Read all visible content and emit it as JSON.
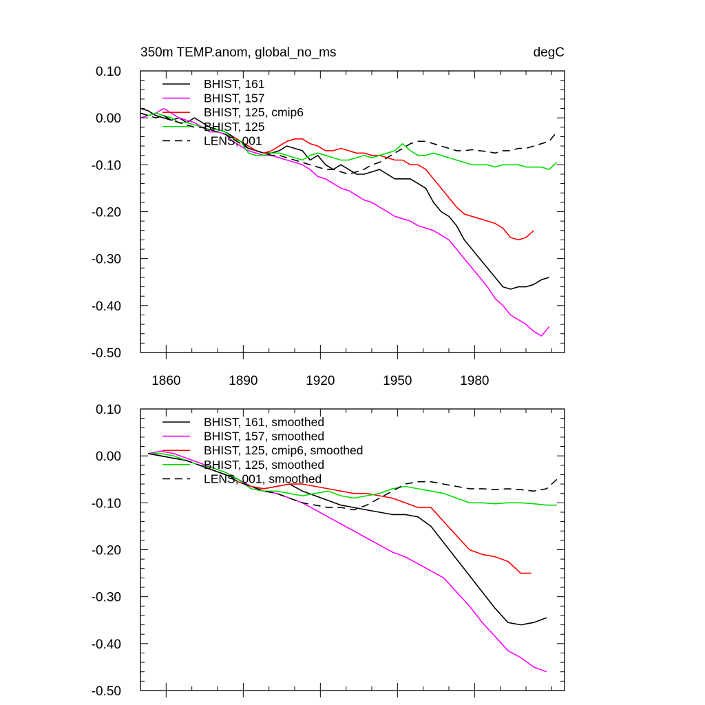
{
  "chart_data": [
    {
      "type": "line",
      "title": "350m TEMP.anom, global_no_ms",
      "units": "degC",
      "xlabel": "",
      "ylabel": "",
      "xlim": [
        1850,
        2015
      ],
      "ylim": [
        -0.5,
        0.1
      ],
      "x_ticks": [
        1860,
        1890,
        1920,
        1950,
        1980
      ],
      "x_tick_labels": [
        "1860",
        "1890",
        "1920",
        "1950",
        "1980"
      ],
      "y_ticks": [
        0.1,
        0.0,
        -0.1,
        -0.2,
        -0.3,
        -0.4,
        -0.5
      ],
      "y_tick_labels": [
        "0.10",
        "0.00",
        "-0.10",
        "-0.20",
        "-0.30",
        "-0.40",
        "-0.50"
      ],
      "legend_position": "top-left",
      "grid": false,
      "series": [
        {
          "name": "BHIST, 161",
          "color": "#000000",
          "dash": "solid",
          "x": [
            1850,
            1853,
            1856,
            1859,
            1862,
            1865,
            1868,
            1871,
            1874,
            1877,
            1880,
            1883,
            1886,
            1889,
            1892,
            1895,
            1898,
            1901,
            1904,
            1907,
            1910,
            1913,
            1916,
            1919,
            1922,
            1925,
            1928,
            1931,
            1934,
            1937,
            1940,
            1943,
            1946,
            1949,
            1952,
            1955,
            1958,
            1961,
            1964,
            1967,
            1970,
            1973,
            1976,
            1979,
            1982,
            1985,
            1988,
            1991,
            1994,
            1997,
            2000,
            2003,
            2006,
            2009
          ],
          "y": [
            0.02,
            0.015,
            0.005,
            0.0,
            -0.005,
            0.0,
            -0.01,
            0.0,
            -0.01,
            -0.02,
            -0.025,
            -0.03,
            -0.04,
            -0.05,
            -0.065,
            -0.07,
            -0.075,
            -0.075,
            -0.07,
            -0.06,
            -0.065,
            -0.07,
            -0.09,
            -0.08,
            -0.1,
            -0.11,
            -0.1,
            -0.11,
            -0.12,
            -0.12,
            -0.115,
            -0.11,
            -0.12,
            -0.13,
            -0.13,
            -0.13,
            -0.14,
            -0.15,
            -0.18,
            -0.2,
            -0.21,
            -0.23,
            -0.26,
            -0.28,
            -0.3,
            -0.32,
            -0.34,
            -0.36,
            -0.365,
            -0.36,
            -0.36,
            -0.355,
            -0.345,
            -0.34
          ]
        },
        {
          "name": "BHIST, 157",
          "color": "#ff00ff",
          "dash": "solid",
          "x": [
            1850,
            1853,
            1856,
            1859,
            1862,
            1865,
            1868,
            1871,
            1874,
            1877,
            1880,
            1883,
            1886,
            1889,
            1892,
            1895,
            1898,
            1901,
            1904,
            1907,
            1910,
            1913,
            1916,
            1919,
            1922,
            1925,
            1928,
            1931,
            1934,
            1937,
            1940,
            1943,
            1946,
            1949,
            1952,
            1955,
            1958,
            1961,
            1964,
            1967,
            1970,
            1973,
            1976,
            1979,
            1982,
            1985,
            1988,
            1991,
            1994,
            1997,
            2000,
            2003,
            2006,
            2009
          ],
          "y": [
            0.0,
            0.005,
            0.01,
            0.02,
            0.01,
            0.0,
            -0.005,
            -0.01,
            -0.02,
            -0.03,
            -0.03,
            -0.035,
            -0.05,
            -0.06,
            -0.07,
            -0.075,
            -0.08,
            -0.08,
            -0.085,
            -0.09,
            -0.095,
            -0.1,
            -0.11,
            -0.125,
            -0.13,
            -0.14,
            -0.15,
            -0.155,
            -0.165,
            -0.175,
            -0.18,
            -0.19,
            -0.2,
            -0.21,
            -0.215,
            -0.22,
            -0.23,
            -0.235,
            -0.24,
            -0.25,
            -0.26,
            -0.28,
            -0.3,
            -0.32,
            -0.34,
            -0.36,
            -0.385,
            -0.4,
            -0.42,
            -0.43,
            -0.44,
            -0.455,
            -0.465,
            -0.445
          ]
        },
        {
          "name": "BHIST, 125, cmip6",
          "color": "#ff0000",
          "dash": "solid",
          "x": [
            1886,
            1889,
            1892,
            1895,
            1898,
            1901,
            1904,
            1907,
            1910,
            1913,
            1916,
            1919,
            1922,
            1925,
            1928,
            1931,
            1934,
            1937,
            1940,
            1943,
            1946,
            1949,
            1952,
            1955,
            1958,
            1961,
            1964,
            1967,
            1970,
            1973,
            1976,
            1979,
            1982,
            1985,
            1988,
            1991,
            1994,
            1997,
            2000,
            2003
          ],
          "y": [
            -0.04,
            -0.05,
            -0.06,
            -0.07,
            -0.075,
            -0.07,
            -0.06,
            -0.05,
            -0.045,
            -0.045,
            -0.055,
            -0.06,
            -0.07,
            -0.07,
            -0.065,
            -0.07,
            -0.075,
            -0.075,
            -0.08,
            -0.08,
            -0.085,
            -0.09,
            -0.09,
            -0.1,
            -0.1,
            -0.11,
            -0.13,
            -0.15,
            -0.17,
            -0.19,
            -0.205,
            -0.21,
            -0.215,
            -0.22,
            -0.225,
            -0.235,
            -0.255,
            -0.26,
            -0.255,
            -0.24
          ]
        },
        {
          "name": "BHIST, 125",
          "color": "#00dd00",
          "dash": "solid",
          "x": [
            1850,
            1853,
            1856,
            1859,
            1862,
            1865,
            1868,
            1871,
            1874,
            1877,
            1880,
            1883,
            1886,
            1889,
            1892,
            1895,
            1898,
            1901,
            1904,
            1907,
            1910,
            1913,
            1916,
            1919,
            1922,
            1925,
            1928,
            1931,
            1934,
            1937,
            1940,
            1943,
            1946,
            1949,
            1952,
            1955,
            1958,
            1961,
            1964,
            1967,
            1970,
            1973,
            1976,
            1979,
            1982,
            1985,
            1988,
            1991,
            1994,
            1997,
            2000,
            2003,
            2006,
            2009,
            2012
          ],
          "y": [
            0.01,
            0.005,
            0.01,
            0.005,
            0.0,
            -0.01,
            -0.01,
            -0.015,
            -0.02,
            -0.025,
            -0.025,
            -0.03,
            -0.045,
            -0.05,
            -0.075,
            -0.08,
            -0.08,
            -0.075,
            -0.075,
            -0.08,
            -0.085,
            -0.09,
            -0.08,
            -0.075,
            -0.08,
            -0.085,
            -0.09,
            -0.09,
            -0.085,
            -0.08,
            -0.085,
            -0.08,
            -0.075,
            -0.07,
            -0.055,
            -0.07,
            -0.08,
            -0.08,
            -0.075,
            -0.08,
            -0.085,
            -0.09,
            -0.095,
            -0.1,
            -0.1,
            -0.1,
            -0.105,
            -0.1,
            -0.1,
            -0.1,
            -0.105,
            -0.105,
            -0.105,
            -0.11,
            -0.095
          ]
        },
        {
          "name": "LENS, 001",
          "color": "#000000",
          "dash": "dashed",
          "x": [
            1850,
            1853,
            1856,
            1859,
            1862,
            1865,
            1868,
            1871,
            1874,
            1877,
            1880,
            1883,
            1886,
            1889,
            1892,
            1895,
            1898,
            1901,
            1904,
            1907,
            1910,
            1913,
            1916,
            1919,
            1922,
            1925,
            1928,
            1931,
            1934,
            1937,
            1940,
            1943,
            1946,
            1949,
            1952,
            1955,
            1958,
            1961,
            1964,
            1967,
            1970,
            1973,
            1976,
            1979,
            1982,
            1985,
            1988,
            1991,
            1994,
            1997,
            2000,
            2003,
            2006,
            2009,
            2012
          ],
          "y": [
            0.01,
            0.005,
            0.0,
            0.005,
            -0.005,
            -0.01,
            -0.015,
            -0.02,
            -0.02,
            -0.025,
            -0.03,
            -0.035,
            -0.045,
            -0.055,
            -0.065,
            -0.07,
            -0.075,
            -0.08,
            -0.08,
            -0.085,
            -0.09,
            -0.095,
            -0.1,
            -0.105,
            -0.11,
            -0.11,
            -0.115,
            -0.12,
            -0.115,
            -0.11,
            -0.1,
            -0.095,
            -0.085,
            -0.075,
            -0.065,
            -0.055,
            -0.05,
            -0.05,
            -0.055,
            -0.06,
            -0.065,
            -0.07,
            -0.07,
            -0.068,
            -0.07,
            -0.072,
            -0.075,
            -0.07,
            -0.07,
            -0.065,
            -0.065,
            -0.06,
            -0.055,
            -0.05,
            -0.03
          ]
        }
      ]
    },
    {
      "type": "line",
      "title": "",
      "xlabel": "",
      "ylabel": "",
      "xlim": [
        1850,
        2015
      ],
      "ylim": [
        -0.5,
        0.1
      ],
      "x_ticks": [
        1860,
        1890,
        1920,
        1950,
        1980
      ],
      "x_tick_labels": [],
      "y_ticks": [
        0.1,
        0.0,
        -0.1,
        -0.2,
        -0.3,
        -0.4,
        -0.5
      ],
      "y_tick_labels": [
        "0.10",
        "0.00",
        "-0.10",
        "-0.20",
        "-0.30",
        "-0.40",
        "-0.50"
      ],
      "legend_position": "top-left",
      "grid": false,
      "series": [
        {
          "name": "BHIST, 161, smoothed",
          "color": "#000000",
          "dash": "solid",
          "x": [
            1853,
            1858,
            1863,
            1868,
            1873,
            1878,
            1883,
            1888,
            1893,
            1898,
            1903,
            1908,
            1913,
            1918,
            1923,
            1928,
            1933,
            1938,
            1943,
            1948,
            1953,
            1958,
            1963,
            1968,
            1973,
            1978,
            1983,
            1988,
            1993,
            1998,
            2003,
            2008
          ],
          "y": [
            0.005,
            0.0,
            -0.005,
            -0.01,
            -0.02,
            -0.03,
            -0.04,
            -0.05,
            -0.065,
            -0.07,
            -0.065,
            -0.06,
            -0.075,
            -0.085,
            -0.095,
            -0.105,
            -0.11,
            -0.115,
            -0.12,
            -0.125,
            -0.125,
            -0.13,
            -0.15,
            -0.185,
            -0.22,
            -0.255,
            -0.29,
            -0.325,
            -0.355,
            -0.36,
            -0.355,
            -0.345
          ]
        },
        {
          "name": "BHIST, 157, smoothed",
          "color": "#ff00ff",
          "dash": "solid",
          "x": [
            1853,
            1858,
            1863,
            1868,
            1873,
            1878,
            1883,
            1888,
            1893,
            1898,
            1903,
            1908,
            1913,
            1918,
            1923,
            1928,
            1933,
            1938,
            1943,
            1948,
            1953,
            1958,
            1963,
            1968,
            1973,
            1978,
            1983,
            1988,
            1993,
            1998,
            2003,
            2008
          ],
          "y": [
            0.005,
            0.01,
            0.005,
            -0.005,
            -0.015,
            -0.025,
            -0.035,
            -0.05,
            -0.065,
            -0.075,
            -0.08,
            -0.09,
            -0.1,
            -0.115,
            -0.13,
            -0.145,
            -0.16,
            -0.175,
            -0.19,
            -0.205,
            -0.215,
            -0.23,
            -0.245,
            -0.26,
            -0.29,
            -0.32,
            -0.355,
            -0.385,
            -0.415,
            -0.43,
            -0.45,
            -0.46
          ]
        },
        {
          "name": "BHIST, 125, cmip6, smoothed",
          "color": "#ff0000",
          "dash": "solid",
          "x": [
            1888,
            1893,
            1898,
            1903,
            1908,
            1913,
            1918,
            1923,
            1928,
            1933,
            1938,
            1943,
            1948,
            1953,
            1958,
            1963,
            1968,
            1973,
            1978,
            1983,
            1988,
            1993,
            1998,
            2002
          ],
          "y": [
            -0.055,
            -0.065,
            -0.07,
            -0.065,
            -0.06,
            -0.06,
            -0.065,
            -0.07,
            -0.075,
            -0.08,
            -0.08,
            -0.085,
            -0.09,
            -0.1,
            -0.11,
            -0.11,
            -0.14,
            -0.17,
            -0.2,
            -0.21,
            -0.215,
            -0.225,
            -0.25,
            -0.25
          ]
        },
        {
          "name": "BHIST, 125, smoothed",
          "color": "#00dd00",
          "dash": "solid",
          "x": [
            1853,
            1858,
            1863,
            1868,
            1873,
            1878,
            1883,
            1888,
            1893,
            1898,
            1903,
            1908,
            1913,
            1918,
            1923,
            1928,
            1933,
            1938,
            1943,
            1948,
            1953,
            1958,
            1963,
            1968,
            1973,
            1978,
            1983,
            1988,
            1993,
            1998,
            2003,
            2008,
            2012
          ],
          "y": [
            0.005,
            0.005,
            0.0,
            -0.01,
            -0.02,
            -0.025,
            -0.035,
            -0.05,
            -0.07,
            -0.075,
            -0.075,
            -0.08,
            -0.085,
            -0.08,
            -0.075,
            -0.085,
            -0.09,
            -0.085,
            -0.08,
            -0.07,
            -0.065,
            -0.07,
            -0.075,
            -0.08,
            -0.09,
            -0.1,
            -0.1,
            -0.102,
            -0.1,
            -0.1,
            -0.102,
            -0.105,
            -0.105
          ]
        },
        {
          "name": "LENS, 001, smoothed",
          "color": "#000000",
          "dash": "dashed",
          "x": [
            1853,
            1858,
            1863,
            1868,
            1873,
            1878,
            1883,
            1888,
            1893,
            1898,
            1903,
            1908,
            1913,
            1918,
            1923,
            1928,
            1933,
            1938,
            1943,
            1948,
            1953,
            1958,
            1963,
            1968,
            1973,
            1978,
            1983,
            1988,
            1993,
            1998,
            2003,
            2008,
            2012
          ],
          "y": [
            0.005,
            0.0,
            -0.005,
            -0.01,
            -0.02,
            -0.03,
            -0.04,
            -0.055,
            -0.065,
            -0.075,
            -0.08,
            -0.09,
            -0.1,
            -0.105,
            -0.11,
            -0.11,
            -0.115,
            -0.105,
            -0.09,
            -0.075,
            -0.06,
            -0.055,
            -0.055,
            -0.06,
            -0.065,
            -0.07,
            -0.07,
            -0.072,
            -0.07,
            -0.072,
            -0.075,
            -0.07,
            -0.05
          ]
        }
      ]
    }
  ]
}
